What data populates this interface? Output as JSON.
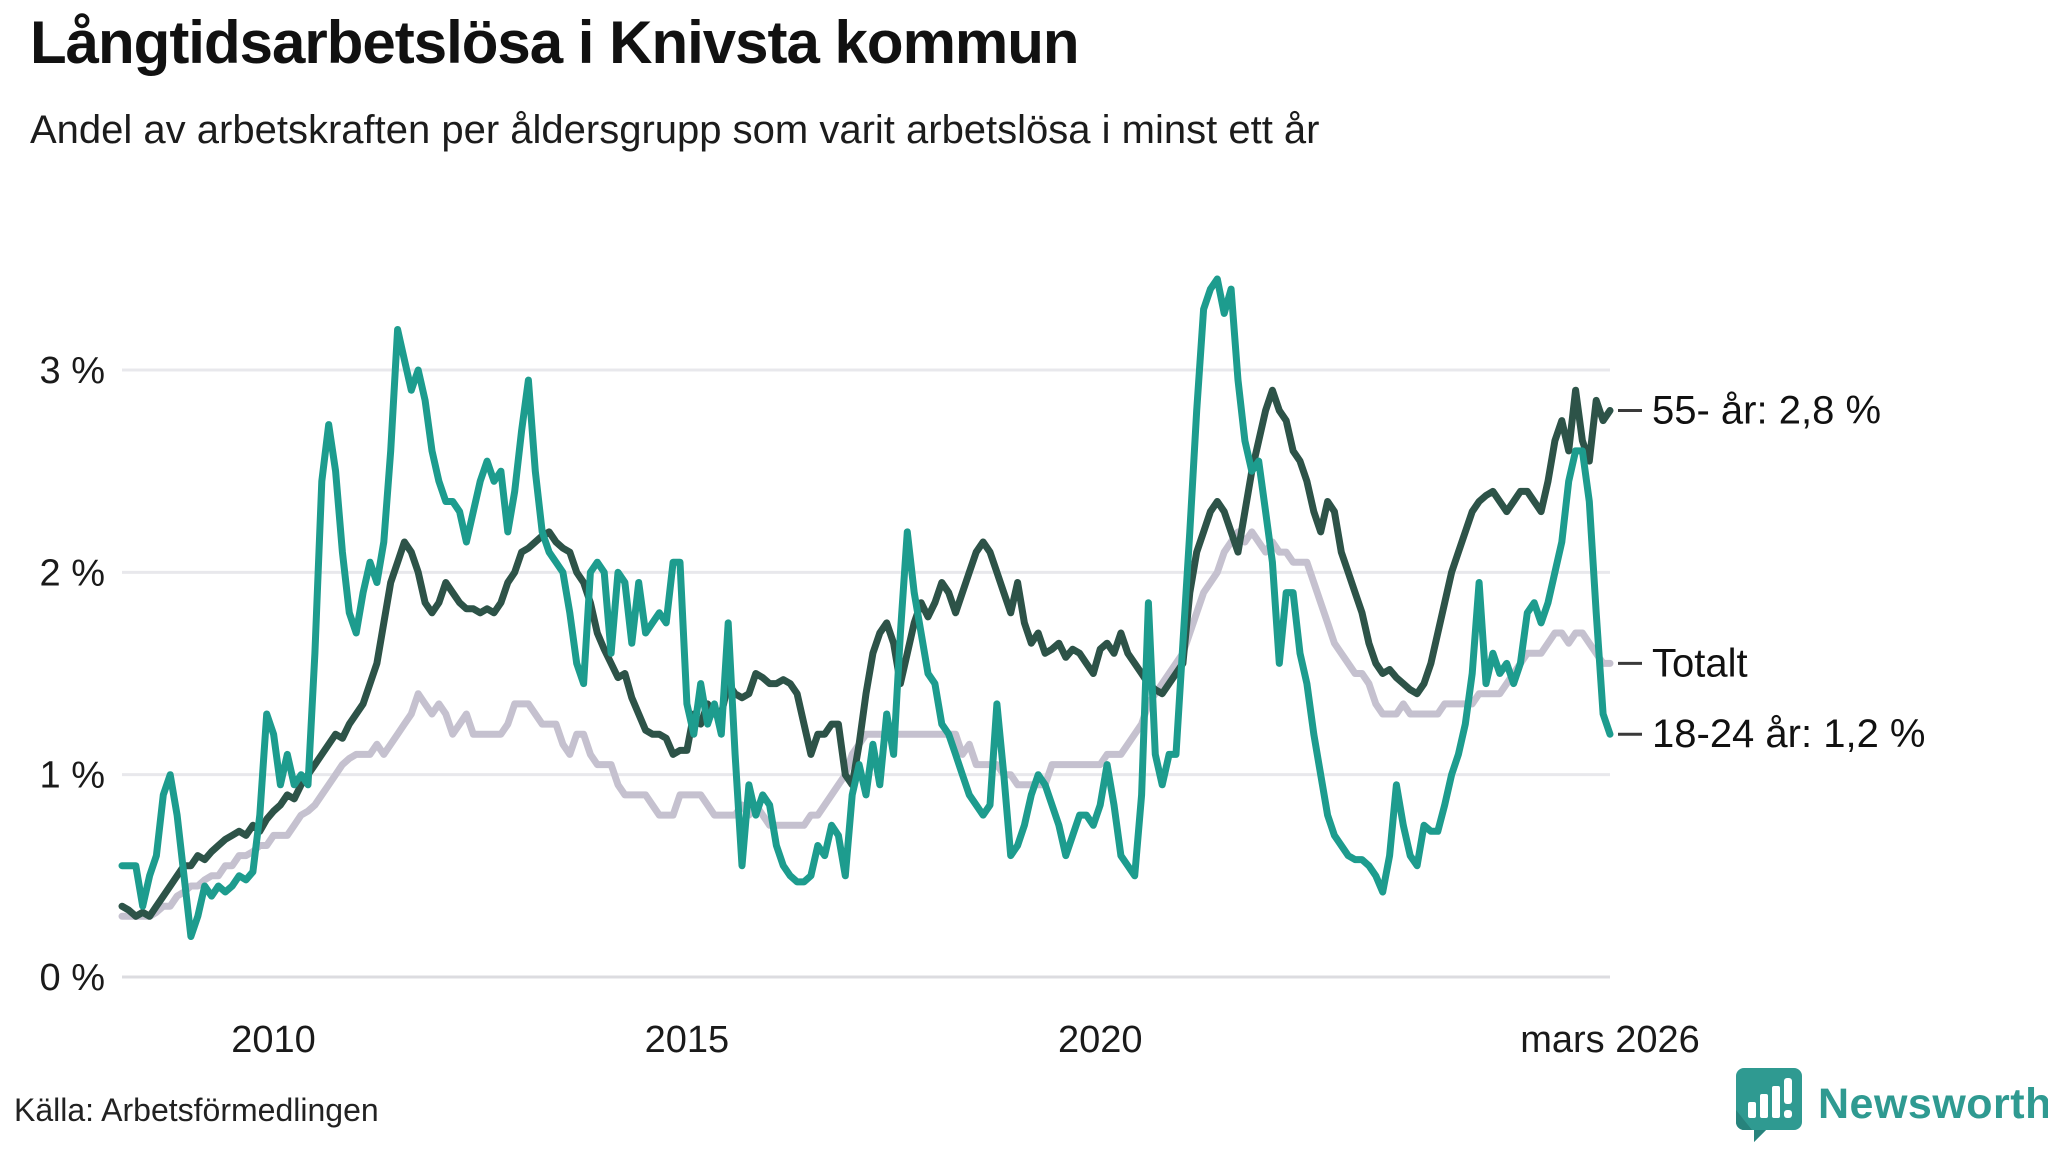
{
  "header": {
    "title": "Långtidsarbetslösa i Knivsta kommun",
    "subtitle": "Andel av arbetskraften per åldersgrupp som varit arbetslösa i minst ett år"
  },
  "footer": {
    "source": "Källa: Arbetsförmedlingen",
    "brand": "Newsworthy"
  },
  "colors": {
    "grid": "#e8e8ec",
    "zero_axis": "#dcdce0",
    "text": "#1a1a1a",
    "leader_dash": "#3a3a3a",
    "brand_teal": "#2f9a91"
  },
  "chart_data": {
    "type": "line",
    "title": "Långtidsarbetslösa i Knivsta kommun",
    "subtitle": "Andel av arbetskraften per åldersgrupp som varit arbetslösa i minst ett år",
    "unit": "%",
    "frequency": "monthly",
    "x_start": "2008-03",
    "x_end": "2026-03",
    "ylim": [
      0,
      3.6
    ],
    "grid": true,
    "legend_position": "right-end-labels",
    "y_ticks": [
      {
        "value": 0,
        "label": "0 %"
      },
      {
        "value": 1,
        "label": "1 %"
      },
      {
        "value": 2,
        "label": "2 %"
      },
      {
        "value": 3,
        "label": "3 %"
      }
    ],
    "x_ticks": [
      {
        "label": "2010",
        "month_index": 22
      },
      {
        "label": "2015",
        "month_index": 82
      },
      {
        "label": "2020",
        "month_index": 142
      },
      {
        "label": "mars 2026",
        "month_index": 216
      }
    ],
    "series": [
      {
        "id": "totalt",
        "name": "Totalt",
        "end_label": "Totalt",
        "end_value": 1.55,
        "color": "#c5c1cf",
        "values": [
          0.3,
          0.3,
          0.3,
          0.3,
          0.3,
          0.32,
          0.35,
          0.35,
          0.4,
          0.42,
          0.45,
          0.45,
          0.48,
          0.5,
          0.5,
          0.55,
          0.55,
          0.6,
          0.6,
          0.62,
          0.65,
          0.65,
          0.7,
          0.7,
          0.7,
          0.75,
          0.8,
          0.82,
          0.85,
          0.9,
          0.95,
          1.0,
          1.05,
          1.08,
          1.1,
          1.1,
          1.1,
          1.15,
          1.1,
          1.15,
          1.2,
          1.25,
          1.3,
          1.4,
          1.35,
          1.3,
          1.35,
          1.3,
          1.2,
          1.25,
          1.3,
          1.2,
          1.2,
          1.2,
          1.2,
          1.2,
          1.25,
          1.35,
          1.35,
          1.35,
          1.3,
          1.25,
          1.25,
          1.25,
          1.15,
          1.1,
          1.2,
          1.2,
          1.1,
          1.05,
          1.05,
          1.05,
          0.95,
          0.9,
          0.9,
          0.9,
          0.9,
          0.85,
          0.8,
          0.8,
          0.8,
          0.9,
          0.9,
          0.9,
          0.9,
          0.85,
          0.8,
          0.8,
          0.8,
          0.8,
          0.85,
          0.8,
          0.85,
          0.8,
          0.75,
          0.75,
          0.75,
          0.75,
          0.75,
          0.75,
          0.8,
          0.8,
          0.85,
          0.9,
          0.95,
          1.0,
          1.1,
          1.15,
          1.2,
          1.2,
          1.2,
          1.2,
          1.2,
          1.2,
          1.2,
          1.2,
          1.2,
          1.2,
          1.2,
          1.2,
          1.2,
          1.2,
          1.1,
          1.15,
          1.05,
          1.05,
          1.05,
          1.05,
          1.0,
          1.0,
          0.95,
          0.95,
          0.95,
          0.95,
          0.95,
          1.05,
          1.05,
          1.05,
          1.05,
          1.05,
          1.05,
          1.05,
          1.05,
          1.1,
          1.1,
          1.1,
          1.15,
          1.2,
          1.25,
          1.35,
          1.4,
          1.45,
          1.5,
          1.55,
          1.6,
          1.7,
          1.8,
          1.9,
          1.95,
          2.0,
          2.1,
          2.15,
          2.2,
          2.15,
          2.2,
          2.15,
          2.1,
          2.15,
          2.1,
          2.1,
          2.05,
          2.05,
          2.05,
          1.95,
          1.85,
          1.75,
          1.65,
          1.6,
          1.55,
          1.5,
          1.5,
          1.45,
          1.35,
          1.3,
          1.3,
          1.3,
          1.35,
          1.3,
          1.3,
          1.3,
          1.3,
          1.3,
          1.35,
          1.35,
          1.35,
          1.35,
          1.35,
          1.4,
          1.4,
          1.4,
          1.4,
          1.45,
          1.5,
          1.55,
          1.6,
          1.6,
          1.6,
          1.65,
          1.7,
          1.7,
          1.65,
          1.7,
          1.7,
          1.65,
          1.6,
          1.55,
          1.55
        ]
      },
      {
        "id": "55plus",
        "name": "55- år",
        "end_label": "55- år: 2,8 %",
        "end_value": 2.8,
        "color": "#2d5348",
        "values": [
          0.35,
          0.33,
          0.3,
          0.32,
          0.3,
          0.35,
          0.4,
          0.45,
          0.5,
          0.55,
          0.55,
          0.6,
          0.58,
          0.62,
          0.65,
          0.68,
          0.7,
          0.72,
          0.7,
          0.75,
          0.72,
          0.78,
          0.82,
          0.85,
          0.9,
          0.88,
          0.95,
          1.0,
          1.05,
          1.1,
          1.15,
          1.2,
          1.18,
          1.25,
          1.3,
          1.35,
          1.45,
          1.55,
          1.75,
          1.95,
          2.05,
          2.15,
          2.1,
          2.0,
          1.85,
          1.8,
          1.85,
          1.95,
          1.9,
          1.85,
          1.82,
          1.82,
          1.8,
          1.82,
          1.8,
          1.85,
          1.95,
          2.0,
          2.1,
          2.12,
          2.15,
          2.18,
          2.2,
          2.15,
          2.12,
          2.1,
          2.0,
          1.95,
          1.85,
          1.7,
          1.62,
          1.55,
          1.48,
          1.5,
          1.38,
          1.3,
          1.22,
          1.2,
          1.2,
          1.18,
          1.1,
          1.12,
          1.12,
          1.3,
          1.25,
          1.35,
          1.3,
          1.3,
          1.45,
          1.4,
          1.38,
          1.4,
          1.5,
          1.48,
          1.45,
          1.45,
          1.47,
          1.45,
          1.4,
          1.25,
          1.1,
          1.2,
          1.2,
          1.25,
          1.25,
          1.0,
          0.95,
          1.15,
          1.4,
          1.6,
          1.7,
          1.75,
          1.65,
          1.45,
          1.6,
          1.75,
          1.85,
          1.78,
          1.85,
          1.95,
          1.9,
          1.8,
          1.9,
          2.0,
          2.1,
          2.15,
          2.1,
          2.0,
          1.9,
          1.8,
          1.95,
          1.75,
          1.65,
          1.7,
          1.6,
          1.62,
          1.65,
          1.58,
          1.62,
          1.6,
          1.55,
          1.5,
          1.62,
          1.65,
          1.6,
          1.7,
          1.6,
          1.55,
          1.5,
          1.45,
          1.42,
          1.4,
          1.45,
          1.5,
          1.55,
          1.9,
          2.1,
          2.2,
          2.3,
          2.35,
          2.3,
          2.2,
          2.1,
          2.3,
          2.5,
          2.65,
          2.8,
          2.9,
          2.8,
          2.75,
          2.6,
          2.55,
          2.45,
          2.3,
          2.2,
          2.35,
          2.3,
          2.1,
          2.0,
          1.9,
          1.8,
          1.65,
          1.55,
          1.5,
          1.52,
          1.48,
          1.45,
          1.42,
          1.4,
          1.45,
          1.55,
          1.7,
          1.85,
          2.0,
          2.1,
          2.2,
          2.3,
          2.35,
          2.38,
          2.4,
          2.35,
          2.3,
          2.35,
          2.4,
          2.4,
          2.35,
          2.3,
          2.45,
          2.65,
          2.75,
          2.6,
          2.9,
          2.65,
          2.55,
          2.85,
          2.75,
          2.8
        ]
      },
      {
        "id": "18-24",
        "name": "18-24 år",
        "end_label": "18-24 år: 1,2 %",
        "end_value": 1.2,
        "color": "#1d9c8e",
        "values": [
          0.55,
          0.55,
          0.55,
          0.35,
          0.5,
          0.6,
          0.9,
          1.0,
          0.8,
          0.5,
          0.2,
          0.3,
          0.45,
          0.4,
          0.45,
          0.42,
          0.45,
          0.5,
          0.48,
          0.52,
          0.8,
          1.3,
          1.2,
          0.95,
          1.1,
          0.95,
          1.0,
          0.95,
          1.6,
          2.45,
          2.73,
          2.5,
          2.1,
          1.8,
          1.7,
          1.9,
          2.05,
          1.95,
          2.15,
          2.6,
          3.2,
          3.05,
          2.9,
          3.0,
          2.85,
          2.6,
          2.45,
          2.35,
          2.35,
          2.3,
          2.15,
          2.3,
          2.45,
          2.55,
          2.45,
          2.5,
          2.2,
          2.4,
          2.7,
          2.95,
          2.5,
          2.2,
          2.1,
          2.05,
          2.0,
          1.8,
          1.55,
          1.45,
          2.0,
          2.05,
          2.0,
          1.6,
          2.0,
          1.95,
          1.65,
          1.95,
          1.7,
          1.75,
          1.8,
          1.75,
          2.05,
          2.05,
          1.35,
          1.2,
          1.45,
          1.25,
          1.35,
          1.2,
          1.75,
          1.1,
          0.55,
          0.95,
          0.8,
          0.9,
          0.85,
          0.65,
          0.55,
          0.5,
          0.47,
          0.47,
          0.5,
          0.65,
          0.6,
          0.75,
          0.7,
          0.5,
          0.9,
          1.05,
          0.9,
          1.15,
          0.95,
          1.3,
          1.1,
          1.7,
          2.2,
          1.9,
          1.7,
          1.5,
          1.45,
          1.25,
          1.2,
          1.1,
          1.0,
          0.9,
          0.85,
          0.8,
          0.85,
          1.35,
          1.0,
          0.6,
          0.65,
          0.75,
          0.9,
          1.0,
          0.95,
          0.85,
          0.75,
          0.6,
          0.7,
          0.8,
          0.8,
          0.75,
          0.85,
          1.05,
          0.85,
          0.6,
          0.55,
          0.5,
          0.9,
          1.85,
          1.1,
          0.95,
          1.1,
          1.1,
          1.65,
          2.2,
          2.8,
          3.3,
          3.4,
          3.45,
          3.28,
          3.4,
          2.95,
          2.65,
          2.5,
          2.55,
          2.3,
          2.05,
          1.55,
          1.9,
          1.9,
          1.6,
          1.45,
          1.2,
          1.0,
          0.8,
          0.7,
          0.65,
          0.6,
          0.58,
          0.58,
          0.55,
          0.5,
          0.42,
          0.6,
          0.95,
          0.75,
          0.6,
          0.55,
          0.75,
          0.72,
          0.72,
          0.85,
          1.0,
          1.1,
          1.25,
          1.5,
          1.95,
          1.45,
          1.6,
          1.5,
          1.55,
          1.45,
          1.55,
          1.8,
          1.85,
          1.75,
          1.85,
          2.0,
          2.15,
          2.45,
          2.6,
          2.6,
          2.35,
          1.8,
          1.3,
          1.2
        ]
      }
    ]
  },
  "layout_note": ""
}
